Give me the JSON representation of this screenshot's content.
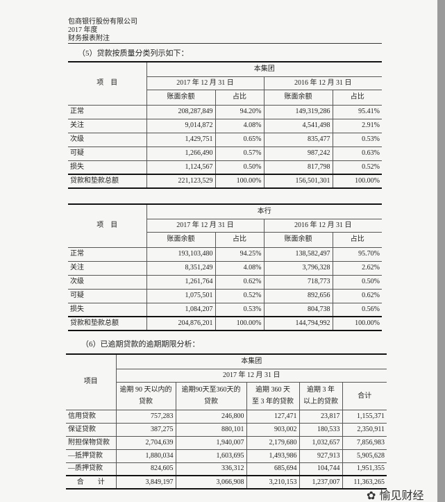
{
  "header": {
    "company": "包商银行股份有限公司",
    "year": "2017 年度",
    "doc": "财务报表附注"
  },
  "section5": {
    "title": "（5）贷款按质量分类列示如下：",
    "tables": [
      {
        "group": "本集团",
        "item_label": "项　目",
        "date1": "2017 年 12 月 31 日",
        "date2": "2016 年 12 月 31 日",
        "col_balance": "账面余额",
        "col_ratio": "占比",
        "rows": [
          {
            "item": "正常",
            "b1": "208,287,849",
            "r1": "94.20%",
            "b2": "149,319,286",
            "r2": "95.41%"
          },
          {
            "item": "关注",
            "b1": "9,014,872",
            "r1": "4.08%",
            "b2": "4,541,498",
            "r2": "2.91%"
          },
          {
            "item": "次级",
            "b1": "1,429,751",
            "r1": "0.65%",
            "b2": "835,477",
            "r2": "0.53%"
          },
          {
            "item": "可疑",
            "b1": "1,266,490",
            "r1": "0.57%",
            "b2": "987,242",
            "r2": "0.63%"
          },
          {
            "item": "损失",
            "b1": "1,124,567",
            "r1": "0.50%",
            "b2": "817,798",
            "r2": "0.52%"
          },
          {
            "item": "贷款和垫款总额",
            "b1": "221,123,529",
            "r1": "100.00%",
            "b2": "156,501,301",
            "r2": "100.00%"
          }
        ]
      },
      {
        "group": "本行",
        "item_label": "项　目",
        "date1": "2017 年 12 月 31 日",
        "date2": "2016 年 12 月 31 日",
        "col_balance": "账面余额",
        "col_ratio": "占比",
        "rows": [
          {
            "item": "正常",
            "b1": "193,103,480",
            "r1": "94.25%",
            "b2": "138,582,497",
            "r2": "95.70%"
          },
          {
            "item": "关注",
            "b1": "8,351,249",
            "r1": "4.08%",
            "b2": "3,796,328",
            "r2": "2.62%"
          },
          {
            "item": "次级",
            "b1": "1,261,764",
            "r1": "0.62%",
            "b2": "718,773",
            "r2": "0.50%"
          },
          {
            "item": "可疑",
            "b1": "1,075,501",
            "r1": "0.52%",
            "b2": "892,656",
            "r2": "0.62%"
          },
          {
            "item": "损失",
            "b1": "1,084,207",
            "r1": "0.53%",
            "b2": "804,738",
            "r2": "0.56%"
          },
          {
            "item": "贷款和垫款总额",
            "b1": "204,876,201",
            "r1": "100.00%",
            "b2": "144,794,992",
            "r2": "100.00%"
          }
        ]
      }
    ]
  },
  "section6": {
    "title": "（6）已逾期贷款的逾期期限分析：",
    "group": "本集团",
    "date": "2017 年 12 月 31 日",
    "item_label": "项目",
    "columns": [
      [
        "逾期 90 天以内的",
        "贷款"
      ],
      [
        "逾期90天至360天的",
        "贷款"
      ],
      [
        "逾期 360 天",
        "至 3 年的贷款"
      ],
      [
        "逾期 3 年",
        "以上的贷款"
      ],
      [
        "合计",
        ""
      ]
    ],
    "rows": [
      {
        "item": "信用贷款",
        "v": [
          "757,283",
          "246,800",
          "127,471",
          "23,817",
          "1,155,371"
        ]
      },
      {
        "item": "保证贷款",
        "v": [
          "387,275",
          "880,101",
          "903,002",
          "180,533",
          "2,350,911"
        ]
      },
      {
        "item": "附担保物贷款",
        "v": [
          "2,704,639",
          "1,940,007",
          "2,179,680",
          "1,032,657",
          "7,856,983"
        ]
      },
      {
        "item": "—抵押贷款",
        "v": [
          "1,880,034",
          "1,603,695",
          "1,493,986",
          "927,913",
          "5,905,628"
        ]
      },
      {
        "item": "—质押贷款",
        "v": [
          "824,605",
          "336,312",
          "685,694",
          "104,744",
          "1,951,355"
        ]
      },
      {
        "item": "合　　计",
        "v": [
          "3,849,197",
          "3,066,908",
          "3,210,153",
          "1,237,007",
          "11,363,265"
        ]
      }
    ]
  },
  "watermark": "愉见财经"
}
